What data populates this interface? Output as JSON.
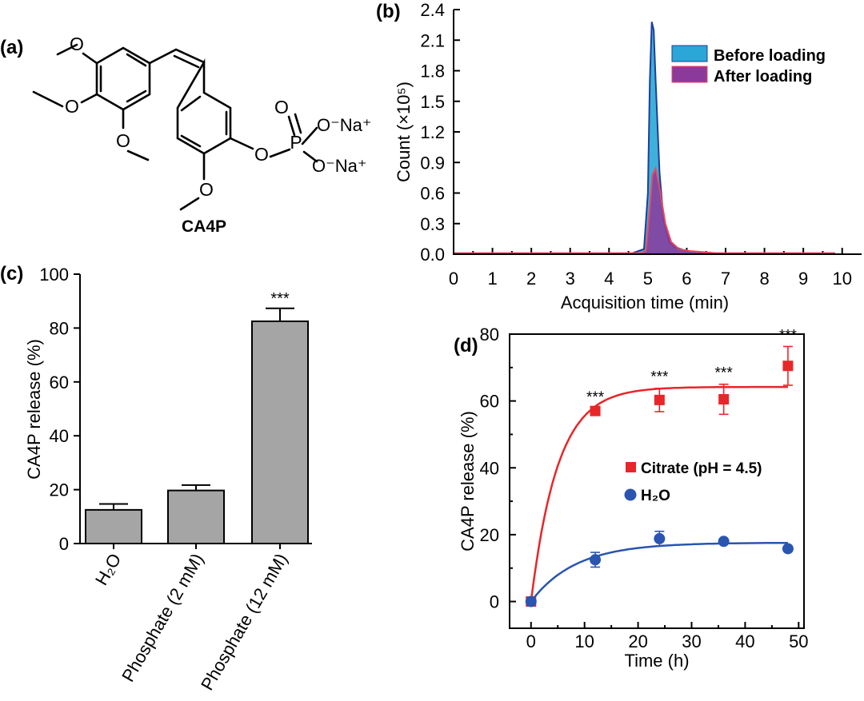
{
  "panel_labels": {
    "a": "(a)",
    "b": "(b)",
    "c": "(c)",
    "d": "(d)"
  },
  "structure": {
    "name": "CA4P",
    "atoms": {
      "o": "O",
      "p": "P"
    },
    "substituents": {
      "na_a": "O⁻Na⁺",
      "na_b": "O⁻Na⁺"
    }
  },
  "colors": {
    "before_fill": "#2aa7d6",
    "before_edge": "#1c3f9a",
    "after_fill": "#8b3a9b",
    "after_edge": "#e8495c",
    "bar": "#a5a5a5",
    "citrate": "#e8262a",
    "water": "#2a55b0"
  },
  "chart_data": [
    {
      "id": "b",
      "type": "area",
      "xlabel": "Acquisition time (min)",
      "ylabel": "Count (×10⁵)",
      "xlim": [
        0,
        10.5
      ],
      "ylim": [
        0,
        2.4
      ],
      "xticks": [
        "0",
        "1",
        "2",
        "3",
        "4",
        "5",
        "6",
        "7",
        "8",
        "9",
        "10"
      ],
      "yticks": [
        "0.0",
        "0.3",
        "0.6",
        "0.9",
        "1.2",
        "1.5",
        "1.8",
        "2.1",
        "2.4"
      ],
      "grid": false,
      "legend": "top-right",
      "series": [
        {
          "name": "Before loading",
          "x": [
            0,
            4.6,
            4.9,
            5.0,
            5.05,
            5.1,
            5.15,
            5.2,
            5.3,
            5.4,
            5.55,
            5.7,
            6.0,
            6.5,
            9.8
          ],
          "y": [
            0.01,
            0.01,
            0.05,
            0.6,
            1.7,
            2.28,
            2.2,
            1.7,
            0.8,
            0.35,
            0.12,
            0.07,
            0.03,
            0.01,
            0.01
          ]
        },
        {
          "name": "After loading",
          "x": [
            0,
            4.8,
            4.95,
            5.05,
            5.12,
            5.2,
            5.3,
            5.45,
            5.6,
            5.8,
            6.1,
            6.8,
            9.8
          ],
          "y": [
            0.01,
            0.01,
            0.03,
            0.45,
            0.78,
            0.84,
            0.65,
            0.3,
            0.12,
            0.05,
            0.03,
            0.01,
            0.01
          ]
        }
      ]
    },
    {
      "id": "c",
      "type": "bar",
      "ylabel": "CA4P release (%)",
      "ylim": [
        0,
        100
      ],
      "yticks": [
        "0",
        "20",
        "40",
        "60",
        "80",
        "100"
      ],
      "categories": [
        "H₂O",
        "Phosphate (2 mM)",
        "Phosphate (12 mM)"
      ],
      "values": [
        12.5,
        19.7,
        82.5
      ],
      "errors": [
        2.2,
        2.0,
        4.8
      ],
      "annotations": [
        "",
        "",
        "***"
      ]
    },
    {
      "id": "d",
      "type": "scatter",
      "xlabel": "Time (h)",
      "ylabel": "CA4P release (%)",
      "xlim": [
        -4,
        51
      ],
      "ylim": [
        -8,
        80
      ],
      "xticks": [
        "0",
        "10",
        "20",
        "30",
        "40",
        "50"
      ],
      "yticks": [
        "0",
        "20",
        "40",
        "60",
        "80"
      ],
      "legend": "center-right",
      "series": [
        {
          "name": "Citrate (pH = 4.5)",
          "x": [
            0,
            12,
            24,
            36,
            48
          ],
          "y": [
            0,
            57,
            60.3,
            60.5,
            70.5
          ],
          "err": [
            0,
            0.8,
            3.5,
            4.5,
            5.8
          ],
          "annot": [
            "",
            "***",
            "***",
            "***",
            "***"
          ],
          "fit": {
            "plateau": 64.2,
            "k": 0.2
          }
        },
        {
          "name": "H₂O",
          "x": [
            0,
            12,
            24,
            36,
            48
          ],
          "y": [
            0,
            12.5,
            18.8,
            18.0,
            15.8
          ],
          "err": [
            0,
            2.2,
            2.2,
            0.6,
            0.6
          ],
          "fit": {
            "plateau": 17.6,
            "k": 0.12
          }
        }
      ]
    }
  ]
}
